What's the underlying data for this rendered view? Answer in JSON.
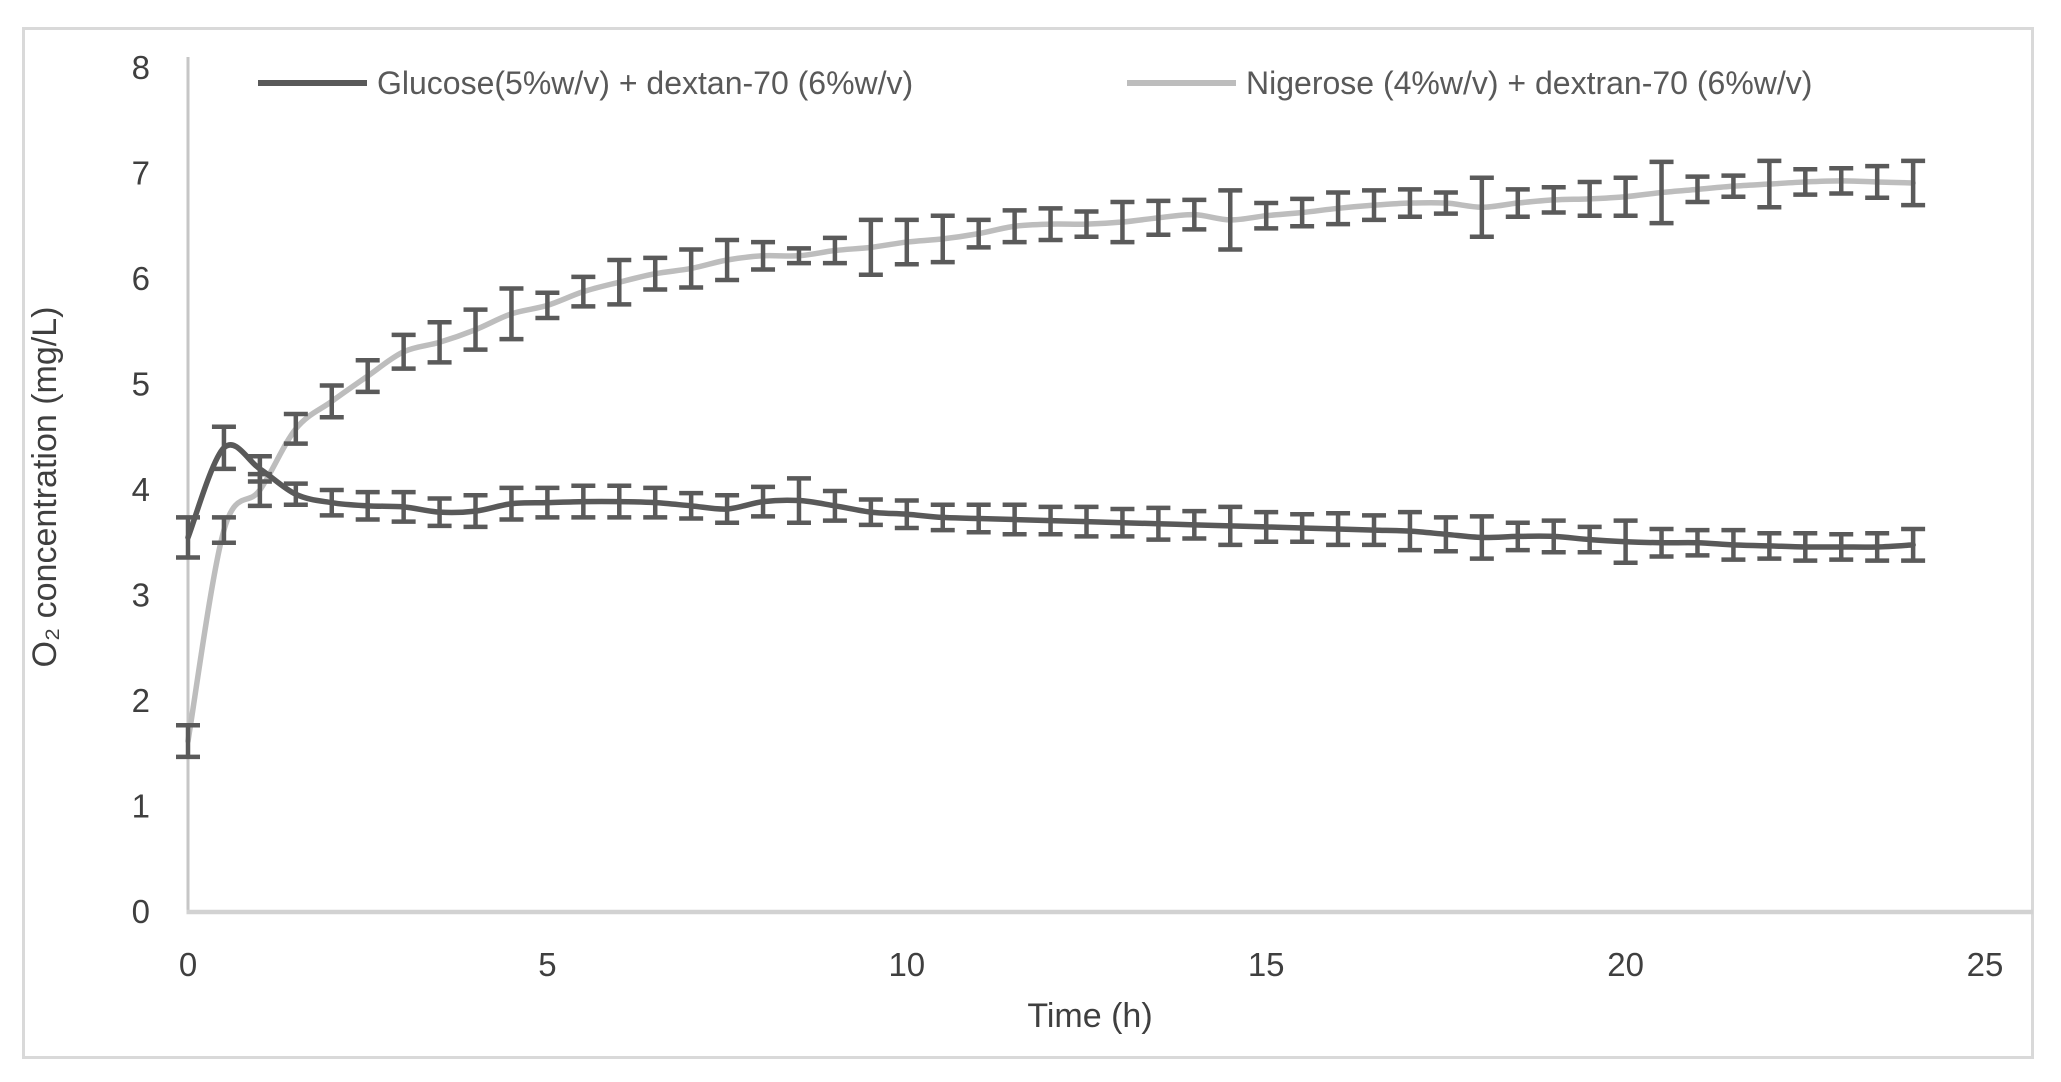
{
  "chart_data": {
    "type": "line",
    "title": "",
    "xlabel": "Time (h)",
    "ylabel": "O₂ concentration (mg/L)",
    "xlim": [
      0,
      25
    ],
    "ylim": [
      0,
      8
    ],
    "x_ticks": [
      0,
      5,
      10,
      15,
      20,
      25
    ],
    "y_ticks": [
      0,
      1,
      2,
      3,
      4,
      5,
      6,
      7,
      8
    ],
    "grid": false,
    "legend_position": "top",
    "axis_color": "#c6c6c6",
    "x_axis_color": "#d2d2d2",
    "tick_label_color": "#3f3f3f",
    "error_bar_color": "#5a5a5a",
    "background_color": "#ffffff",
    "frame_color": "#d9d9d9",
    "x": [
      0,
      0.5,
      1,
      1.5,
      2,
      2.5,
      3,
      3.5,
      4,
      4.5,
      5,
      5.5,
      6,
      6.5,
      7,
      7.5,
      8,
      8.5,
      9,
      9.5,
      10,
      10.5,
      11,
      11.5,
      12,
      12.5,
      13,
      13.5,
      14,
      14.5,
      15,
      15.5,
      16,
      16.5,
      17,
      17.5,
      18,
      18.5,
      19,
      19.5,
      20,
      20.5,
      21,
      21.5,
      22,
      22.5,
      23,
      23.5,
      24
    ],
    "series": [
      {
        "name": "Glucose(5%w/v) + dextan-70 (6%w/v)",
        "color": "#595959",
        "values": [
          3.55,
          4.4,
          4.2,
          3.96,
          3.88,
          3.85,
          3.84,
          3.79,
          3.8,
          3.87,
          3.88,
          3.89,
          3.89,
          3.88,
          3.85,
          3.82,
          3.89,
          3.9,
          3.85,
          3.79,
          3.77,
          3.74,
          3.73,
          3.72,
          3.71,
          3.7,
          3.69,
          3.68,
          3.67,
          3.66,
          3.65,
          3.64,
          3.63,
          3.62,
          3.61,
          3.58,
          3.55,
          3.56,
          3.56,
          3.53,
          3.51,
          3.5,
          3.5,
          3.48,
          3.47,
          3.46,
          3.46,
          3.46,
          3.48
        ],
        "errors": [
          0.19,
          0.2,
          0.12,
          0.1,
          0.12,
          0.13,
          0.14,
          0.13,
          0.15,
          0.15,
          0.14,
          0.15,
          0.15,
          0.14,
          0.12,
          0.13,
          0.14,
          0.21,
          0.14,
          0.12,
          0.13,
          0.12,
          0.13,
          0.14,
          0.13,
          0.14,
          0.13,
          0.15,
          0.13,
          0.18,
          0.14,
          0.13,
          0.15,
          0.14,
          0.18,
          0.16,
          0.2,
          0.13,
          0.15,
          0.12,
          0.2,
          0.13,
          0.12,
          0.14,
          0.12,
          0.13,
          0.12,
          0.13,
          0.15
        ]
      },
      {
        "name": "Nigerose (4%w/v) + dextran-70 (6%w/v)",
        "color": "#bdbdbd",
        "values": [
          1.62,
          3.62,
          4.0,
          4.58,
          4.84,
          5.08,
          5.31,
          5.4,
          5.52,
          5.67,
          5.75,
          5.88,
          5.97,
          6.05,
          6.1,
          6.18,
          6.22,
          6.22,
          6.27,
          6.3,
          6.35,
          6.38,
          6.43,
          6.5,
          6.52,
          6.52,
          6.54,
          6.58,
          6.61,
          6.56,
          6.6,
          6.63,
          6.67,
          6.7,
          6.72,
          6.72,
          6.68,
          6.72,
          6.75,
          6.76,
          6.78,
          6.82,
          6.85,
          6.88,
          6.9,
          6.92,
          6.93,
          6.92,
          6.91
        ],
        "errors": [
          0.15,
          0.12,
          0.15,
          0.14,
          0.15,
          0.15,
          0.16,
          0.19,
          0.19,
          0.24,
          0.12,
          0.14,
          0.21,
          0.15,
          0.18,
          0.19,
          0.13,
          0.07,
          0.12,
          0.26,
          0.21,
          0.22,
          0.13,
          0.15,
          0.15,
          0.12,
          0.19,
          0.16,
          0.14,
          0.28,
          0.12,
          0.13,
          0.15,
          0.14,
          0.13,
          0.1,
          0.28,
          0.13,
          0.12,
          0.16,
          0.18,
          0.29,
          0.12,
          0.1,
          0.22,
          0.12,
          0.12,
          0.15,
          0.21
        ]
      }
    ]
  }
}
